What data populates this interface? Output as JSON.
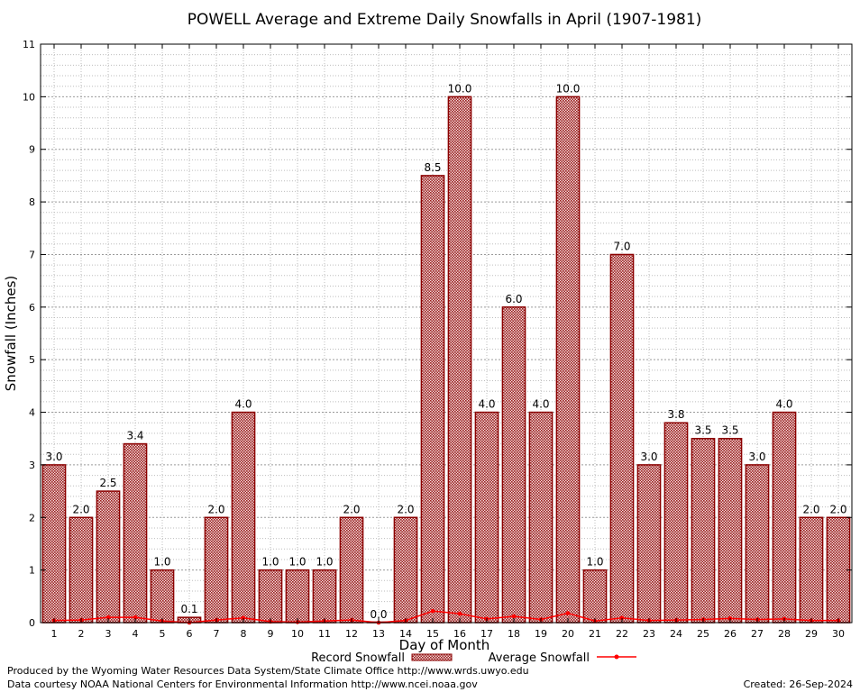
{
  "chart_data": {
    "type": "bar",
    "title": "POWELL Average and Extreme Daily Snowfalls in April (1907-1981)",
    "xlabel": "Day of Month",
    "ylabel": "Snowfall (Inches)",
    "ylim": [
      0,
      11
    ],
    "yticks": [
      "0",
      "1",
      "2",
      "3",
      "4",
      "5",
      "6",
      "7",
      "8",
      "9",
      "10",
      "11"
    ],
    "categories": [
      "1",
      "2",
      "3",
      "4",
      "5",
      "6",
      "7",
      "8",
      "9",
      "10",
      "11",
      "12",
      "13",
      "14",
      "15",
      "16",
      "17",
      "18",
      "19",
      "20",
      "21",
      "22",
      "23",
      "24",
      "25",
      "26",
      "27",
      "28",
      "29",
      "30"
    ],
    "series": [
      {
        "name": "Record Snowfall",
        "values": [
          3.0,
          2.0,
          2.5,
          3.4,
          1.0,
          0.1,
          2.0,
          4.0,
          1.0,
          1.0,
          1.0,
          2.0,
          0.0,
          2.0,
          8.5,
          10.0,
          4.0,
          6.0,
          4.0,
          10.0,
          1.0,
          7.0,
          3.0,
          3.8,
          3.5,
          3.5,
          3.0,
          4.0,
          2.0,
          2.0
        ],
        "labels": [
          "3.0",
          "2.0",
          "2.5",
          "3.4",
          "1.0",
          "0.1",
          "2.0",
          "4.0",
          "1.0",
          "1.0",
          "1.0",
          "2.0",
          "0.0",
          "2.0",
          "8.5",
          "10.0",
          "4.0",
          "6.0",
          "4.0",
          "10.0",
          "1.0",
          "7.0",
          "3.0",
          "3.8",
          "3.5",
          "3.5",
          "3.0",
          "4.0",
          "2.0",
          "2.0"
        ]
      },
      {
        "name": "Average Snowfall",
        "values": [
          0.04,
          0.05,
          0.1,
          0.1,
          0.03,
          0.0,
          0.05,
          0.09,
          0.02,
          0.01,
          0.03,
          0.05,
          0.0,
          0.04,
          0.22,
          0.17,
          0.07,
          0.12,
          0.06,
          0.18,
          0.03,
          0.09,
          0.04,
          0.05,
          0.06,
          0.08,
          0.06,
          0.07,
          0.04,
          0.04
        ]
      }
    ],
    "grid": true,
    "legend": "bottom-center",
    "colors": {
      "bar_fill": "#b55a5a",
      "bar_edge": "#8b0000",
      "average_line": "#ff0000"
    }
  },
  "footer": {
    "produced_by": "Produced by the Wyoming Water Resources Data System/State Climate Office http://www.wrds.uwyo.edu",
    "courtesy": "Data courtesy NOAA National Centers for Environmental Information http://www.ncei.noaa.gov",
    "created": "Created:  26-Sep-2024"
  }
}
